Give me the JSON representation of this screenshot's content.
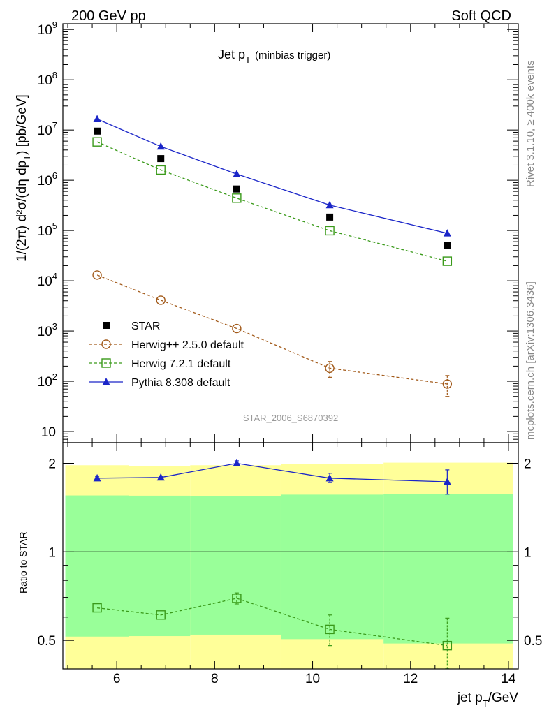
{
  "header": {
    "left_title": "200 GeV pp",
    "right_title": "Soft QCD",
    "plot_title": "Jet p",
    "plot_title_sub": "T",
    "plot_title_note": "(minbias trigger)",
    "analysis_id": "STAR_2006_S6870392",
    "side_label_top": "Rivet 3.1.10, ≥ 400k events",
    "side_label_bottom": "mcplots.cern.ch [arXiv:1306.3436]"
  },
  "axes": {
    "x_label": "jet p",
    "x_label_sub": "T",
    "x_label_unit": "/GeV",
    "y_label_main": "1/(2π) d²σ/(dη dp",
    "y_label_main_sub": "T",
    "y_label_main_end": ") [pb/GeV]",
    "y_label_ratio": "Ratio to STAR"
  },
  "chart_data": [
    {
      "type": "scatter",
      "panel": "main",
      "yscale": "log",
      "xlim": [
        4.9,
        14.2
      ],
      "ylim": [
        6,
        1300000000.0
      ],
      "x_ticks": [
        6,
        8,
        10,
        12,
        14
      ],
      "y_ticks": [
        {
          "value": 10,
          "base": "10",
          "exp": ""
        },
        {
          "value": 100,
          "base": "10",
          "exp": "2"
        },
        {
          "value": 1000,
          "base": "10",
          "exp": "3"
        },
        {
          "value": 10000,
          "base": "10",
          "exp": "4"
        },
        {
          "value": 100000,
          "base": "10",
          "exp": "5"
        },
        {
          "value": 1000000,
          "base": "10",
          "exp": "6"
        },
        {
          "value": 10000000,
          "base": "10",
          "exp": "7"
        },
        {
          "value": 100000000,
          "base": "10",
          "exp": "8"
        },
        {
          "value": 1000000000,
          "base": "10",
          "exp": "9"
        }
      ],
      "series": [
        {
          "key": "star",
          "name": "STAR",
          "color": "#000000",
          "marker": "square-filled",
          "line": "none",
          "x": [
            5.6,
            6.9,
            8.45,
            10.35,
            12.75
          ],
          "y": [
            9500000.0,
            2700000.0,
            670000.0,
            185000.0,
            51000.0
          ]
        },
        {
          "key": "herwigpp",
          "name": "Herwig++ 2.5.0 default",
          "color": "#a25a1a",
          "marker": "circle-open",
          "line": "dashed",
          "x": [
            5.6,
            6.9,
            8.45,
            10.35,
            12.75
          ],
          "y": [
            13000.0,
            4100.0,
            1120.0,
            182,
            88
          ],
          "err_lo": [
            0,
            0,
            0,
            62,
            38
          ],
          "err_hi": [
            0,
            0,
            0,
            65,
            42
          ]
        },
        {
          "key": "herwig7",
          "name": "Herwig 7.2.1 default",
          "color": "#3a9a1a",
          "marker": "square-open",
          "line": "dashed",
          "x": [
            5.6,
            6.9,
            8.45,
            10.35,
            12.75
          ],
          "y": [
            5800000.0,
            1600000.0,
            440000.0,
            99000.0,
            24500.0
          ]
        },
        {
          "key": "pythia",
          "name": "Pythia 8.308 default",
          "color": "#1a25c8",
          "marker": "triangle-filled",
          "line": "solid",
          "x": [
            5.6,
            6.9,
            8.45,
            10.35,
            12.75
          ],
          "y": [
            16500000.0,
            4700000.0,
            1330000.0,
            320000.0,
            88000.0
          ]
        }
      ]
    },
    {
      "type": "scatter",
      "panel": "ratio",
      "yscale": "log",
      "xlim": [
        4.9,
        14.2
      ],
      "ylim": [
        0.4,
        2.35
      ],
      "x_ticks": [
        6,
        8,
        10,
        12,
        14
      ],
      "y_ticks": [
        0.5,
        1,
        2
      ],
      "bands": [
        {
          "name": "outer",
          "color": "#ffff99",
          "segments": [
            {
              "x0": 4.95,
              "x1": 6.25,
              "lo": 0.38,
              "hi": 1.97
            },
            {
              "x0": 6.25,
              "x1": 7.5,
              "lo": 0.38,
              "hi": 1.96
            },
            {
              "x0": 7.5,
              "x1": 9.35,
              "lo": 0.38,
              "hi": 1.97
            },
            {
              "x0": 9.35,
              "x1": 11.45,
              "lo": 0.38,
              "hi": 1.99
            },
            {
              "x0": 11.45,
              "x1": 14.1,
              "lo": 0.38,
              "hi": 2.01
            }
          ]
        },
        {
          "name": "inner",
          "color": "#99ff99",
          "segments": [
            {
              "x0": 4.95,
              "x1": 6.25,
              "lo": 0.515,
              "hi": 1.555
            },
            {
              "x0": 6.25,
              "x1": 7.5,
              "lo": 0.517,
              "hi": 1.552
            },
            {
              "x0": 7.5,
              "x1": 9.35,
              "lo": 0.523,
              "hi": 1.55
            },
            {
              "x0": 9.35,
              "x1": 11.45,
              "lo": 0.505,
              "hi": 1.565
            },
            {
              "x0": 11.45,
              "x1": 14.1,
              "lo": 0.488,
              "hi": 1.575
            }
          ]
        }
      ],
      "reference_line": 1,
      "series": [
        {
          "key": "pythia",
          "name": "Pythia 8.308 default",
          "color": "#1a25c8",
          "marker": "triangle-filled",
          "line": "solid",
          "x": [
            5.6,
            6.9,
            8.45,
            10.35,
            12.75
          ],
          "y": [
            1.78,
            1.79,
            2.0,
            1.78,
            1.73
          ],
          "err_lo": [
            0.02,
            0.02,
            0.04,
            0.06,
            0.16
          ],
          "err_hi": [
            0.02,
            0.02,
            0.04,
            0.07,
            0.17
          ]
        },
        {
          "key": "herwig7",
          "name": "Herwig 7.2.1 default",
          "color": "#3a9a1a",
          "marker": "square-open",
          "line": "dashed",
          "x": [
            5.6,
            6.9,
            8.45,
            10.35,
            12.75
          ],
          "y": [
            0.645,
            0.61,
            0.695,
            0.545,
            0.48
          ],
          "err_lo": [
            0.0,
            0.0,
            0.03,
            0.065,
            0.11
          ],
          "err_hi": [
            0.0,
            0.0,
            0.03,
            0.065,
            0.115
          ]
        }
      ]
    }
  ]
}
